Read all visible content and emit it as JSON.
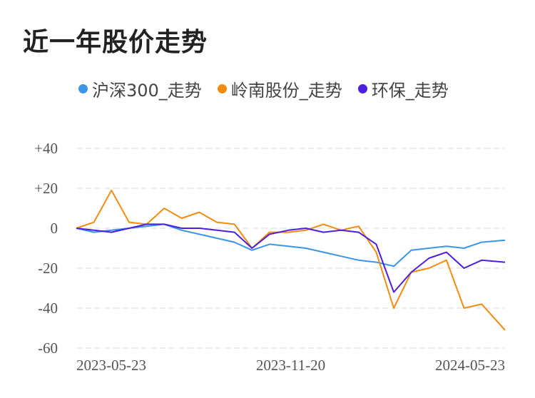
{
  "title": "近一年股价走势",
  "colors": {
    "hs300": "#3b94e8",
    "stock": "#f28c11",
    "sector": "#4b1fe0",
    "grid": "#e6e6e6"
  },
  "chart_data": {
    "type": "line",
    "title": "近一年股价走势",
    "xlabel": "",
    "ylabel": "",
    "x_tick_labels": [
      "2023-05-23",
      "2023-11-20",
      "2024-05-23"
    ],
    "x_range": [
      "2023-05-23",
      "2024-05-23"
    ],
    "y_ticks": [
      40,
      20,
      0,
      -20,
      -40,
      -60
    ],
    "y_tick_labels": [
      "+40",
      "+20",
      "0",
      "-20",
      "-40",
      "-60"
    ],
    "ylim": [
      -60,
      40
    ],
    "grid": true,
    "legend": "top",
    "x": [
      "2023-05-23",
      "2023-06-07",
      "2023-06-22",
      "2023-07-07",
      "2023-07-22",
      "2023-08-06",
      "2023-08-21",
      "2023-09-05",
      "2023-09-20",
      "2023-10-05",
      "2023-10-20",
      "2023-11-04",
      "2023-11-20",
      "2023-12-05",
      "2023-12-20",
      "2024-01-04",
      "2024-01-19",
      "2024-02-03",
      "2024-02-18",
      "2024-03-04",
      "2024-03-19",
      "2024-04-03",
      "2024-04-18",
      "2024-05-03",
      "2024-05-23"
    ],
    "series": [
      {
        "name": "沪深300_走势",
        "values": [
          0,
          -2,
          -1,
          0,
          1,
          2,
          -1,
          -3,
          -5,
          -7,
          -11,
          -8,
          -9,
          -10,
          -12,
          -14,
          -16,
          -17,
          -19,
          -11,
          -10,
          -9,
          -10,
          -7,
          -6
        ]
      },
      {
        "name": "岭南股份_走势",
        "values": [
          0,
          3,
          19,
          3,
          2,
          10,
          5,
          8,
          3,
          2,
          -10,
          -2,
          -2,
          -1,
          2,
          -1,
          1,
          -12,
          -40,
          -22,
          -20,
          -16,
          -40,
          -38,
          -51
        ]
      },
      {
        "name": "环保_走势",
        "values": [
          0,
          -1,
          -2,
          0,
          2,
          2,
          0,
          0,
          -1,
          -2,
          -10,
          -3,
          -1,
          0,
          -2,
          -1,
          -2,
          -8,
          -32,
          -22,
          -15,
          -12,
          -20,
          -16,
          -17
        ]
      }
    ]
  }
}
